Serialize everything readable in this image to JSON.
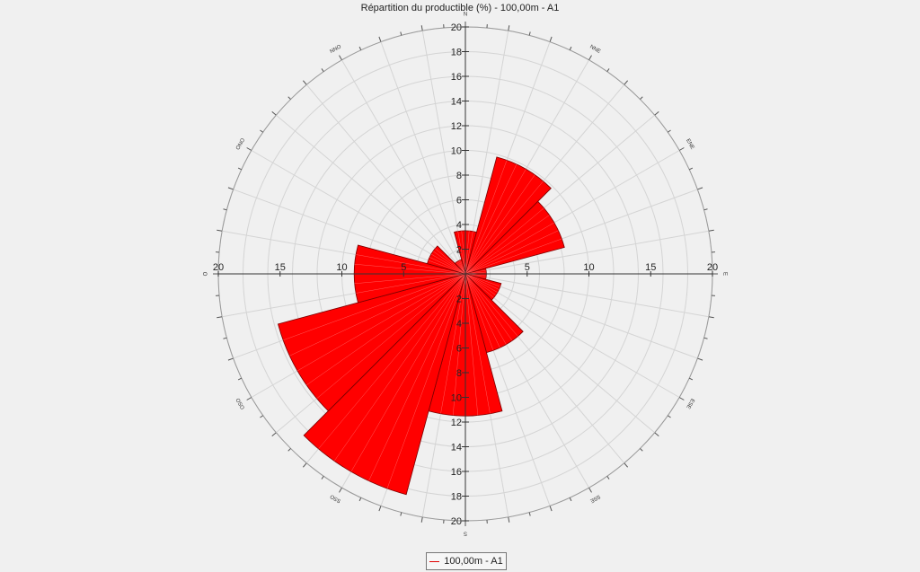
{
  "chart_data": {
    "type": "polar_bar",
    "title": "Répartition du productible (%) - 100,00m - A1",
    "rmax": 20,
    "radial_ticks_vertical": [
      2,
      4,
      6,
      8,
      10,
      12,
      14,
      16,
      18,
      20
    ],
    "radial_ticks_horizontal": [
      5,
      10,
      15,
      20
    ],
    "direction_labels": [
      {
        "label": "N",
        "angle": 0
      },
      {
        "label": "NNE",
        "angle": 30
      },
      {
        "label": "ENE",
        "angle": 60
      },
      {
        "label": "E",
        "angle": 90
      },
      {
        "label": "ESE",
        "angle": 120
      },
      {
        "label": "SSE",
        "angle": 150
      },
      {
        "label": "S",
        "angle": 180
      },
      {
        "label": "SSO",
        "angle": 210
      },
      {
        "label": "OSO",
        "angle": 240
      },
      {
        "label": "O",
        "angle": 270
      },
      {
        "label": "ONO",
        "angle": 300
      },
      {
        "label": "NNO",
        "angle": 330
      }
    ],
    "sectors": [
      {
        "direction": "N",
        "value": 3.5
      },
      {
        "direction": "NNE",
        "value": 9.8
      },
      {
        "direction": "ENE",
        "value": 8.3
      },
      {
        "direction": "E",
        "value": 1.7
      },
      {
        "direction": "ESE",
        "value": 3.0
      },
      {
        "direction": "SSE",
        "value": 6.6
      },
      {
        "direction": "S",
        "value": 11.5
      },
      {
        "direction": "SSO",
        "value": 18.5
      },
      {
        "direction": "OSO",
        "value": 15.7
      },
      {
        "direction": "O",
        "value": 9.0
      },
      {
        "direction": "ONO",
        "value": 3.2
      },
      {
        "direction": "NNO",
        "value": 1.2
      }
    ],
    "series": [
      {
        "name": "100,00m - A1",
        "color": "#ff0000",
        "edge": "#7a0000"
      }
    ],
    "grid": true
  }
}
